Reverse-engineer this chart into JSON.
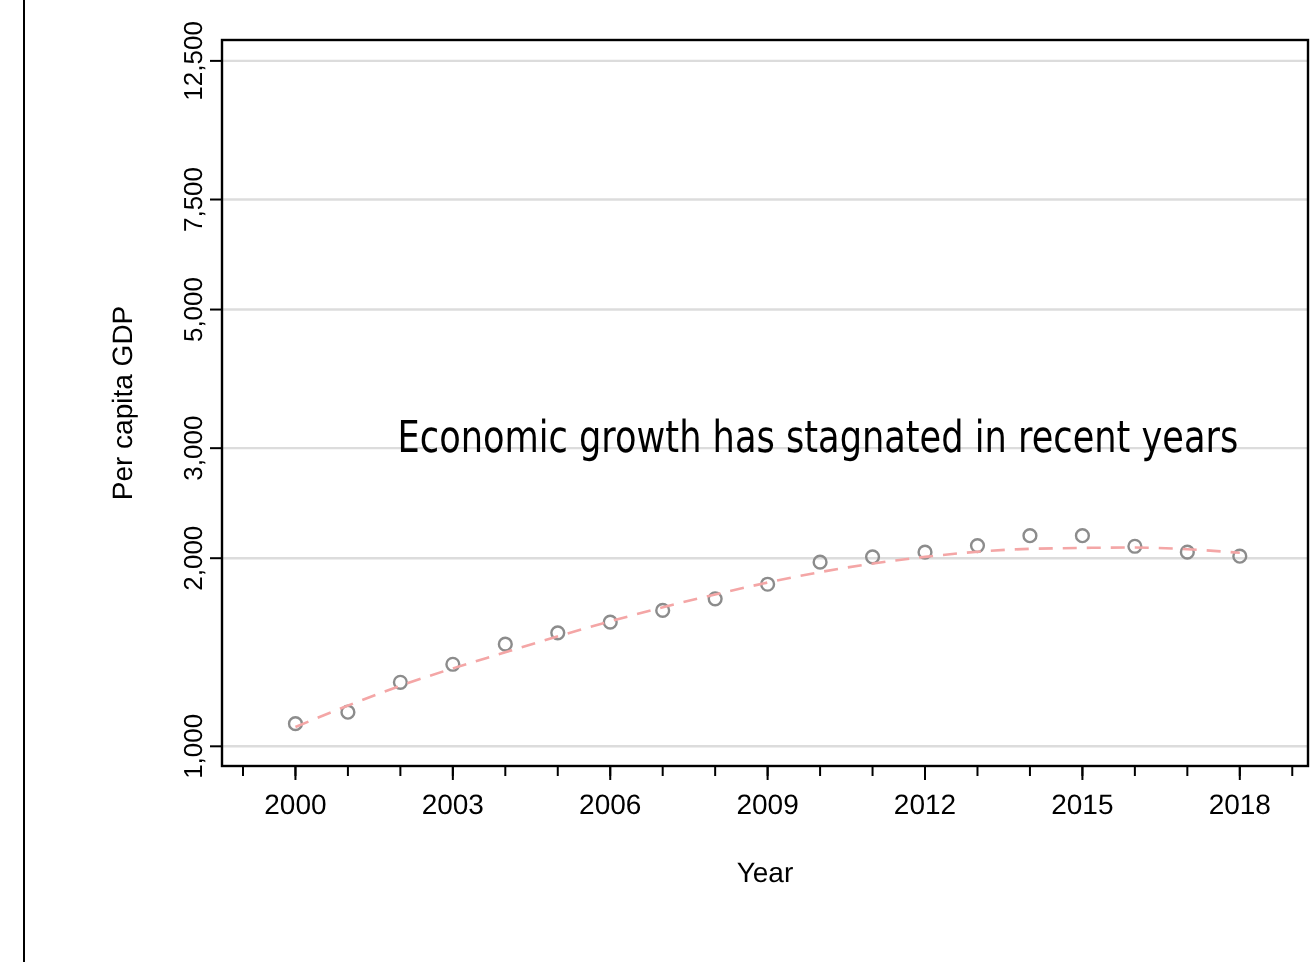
{
  "chart_data": {
    "type": "scatter",
    "xlabel": "Year",
    "ylabel": "Per capita GDP",
    "log": "y",
    "grid": "y",
    "marker": "circle",
    "xlim": [
      1998.6,
      2019.3
    ],
    "xticks": [
      2000,
      2003,
      2006,
      2009,
      2012,
      2015,
      2018
    ],
    "ylim": [
      930,
      13500
    ],
    "yticks": [
      {
        "value": 1000,
        "label": "1,000"
      },
      {
        "value": 2000,
        "label": "2,000"
      },
      {
        "value": 3000,
        "label": "3,000"
      },
      {
        "value": 5000,
        "label": "5,000"
      },
      {
        "value": 7500,
        "label": "7,500"
      },
      {
        "value": 12500,
        "label": "12,500"
      }
    ],
    "annotations": [
      "Economic growth has stagnated in recent years"
    ],
    "series": [
      {
        "color": "#8c8c8c",
        "x": [
          2000,
          2001,
          2002,
          2003,
          2004,
          2005,
          2006,
          2007,
          2008,
          2009,
          2010,
          2011,
          2012,
          2013,
          2014,
          2015,
          2016,
          2017,
          2018
        ],
        "values": [
          1087,
          1134,
          1266,
          1353,
          1457,
          1519,
          1580,
          1650,
          1722,
          1817,
          1971,
          2010,
          2045,
          2095,
          2173,
          2173,
          2090,
          2045,
          2015
        ]
      },
      {
        "type": "line",
        "color": "#f4a6a6",
        "line_style": "dashed",
        "marker": "none",
        "x": [
          2000,
          2002,
          2004,
          2006,
          2008,
          2010,
          2012,
          2014,
          2016,
          2018
        ],
        "values": [
          1074,
          1250,
          1414,
          1585,
          1750,
          1900,
          2010,
          2070,
          2080,
          2040
        ]
      }
    ]
  }
}
